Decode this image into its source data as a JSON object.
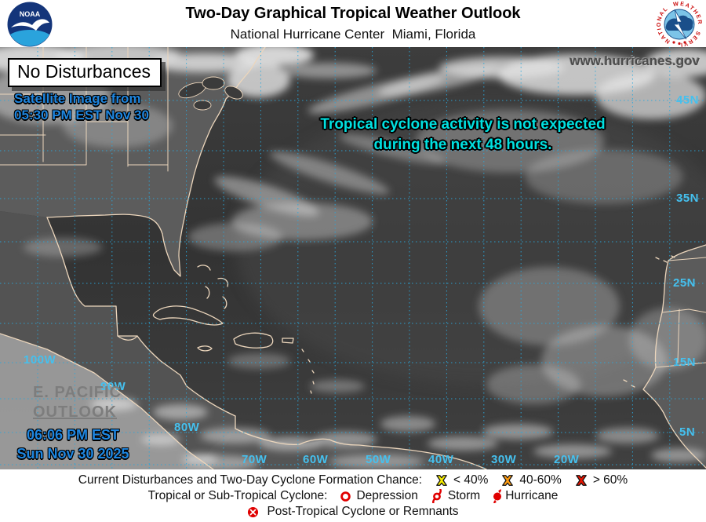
{
  "header": {
    "title": "Two-Day Graphical Tropical Weather Outlook",
    "subtitle": "National Hurricane Center  Miami, Florida",
    "noaa_logo_text": "NOAA"
  },
  "map": {
    "status_box": "No Disturbances",
    "satellite_line1": "Satellite Image from",
    "satellite_line2": "05:30 PM EST Nov 30",
    "website": "www.hurricanes.gov",
    "message_line1": "Tropical cyclone activity is not expected",
    "message_line2": "during the next 48 hours.",
    "epac_line1": "E. PACIFIC",
    "epac_line2": "OUTLOOK",
    "issued_time": "06:06 PM EST",
    "issued_date": "Sun Nov 30 2025",
    "lat_labels": [
      "45N",
      "35N",
      "25N",
      "15N",
      "5N"
    ],
    "lon_labels": [
      "100W",
      "90W",
      "80W",
      "70W",
      "60W",
      "50W",
      "40W",
      "30W",
      "20W"
    ],
    "label_color": "#45c0ee",
    "grid_color": "#2aa8dc",
    "message_color": "#00e0e0",
    "timestamp_color": "#1e86e0"
  },
  "legend": {
    "chance_title": "Current Disturbances and Two-Day Cyclone Formation Chance:",
    "chance_items": [
      {
        "label": "< 40%",
        "color": "#f6ec00"
      },
      {
        "label": "40-60%",
        "color": "#ff9c12"
      },
      {
        "label": "> 60%",
        "color": "#e81400"
      }
    ],
    "cyclone_title": "Tropical or Sub-Tropical Cyclone:",
    "cyclone_items": [
      {
        "label": "Depression"
      },
      {
        "label": "Storm"
      },
      {
        "label": "Hurricane"
      }
    ],
    "post_tropical_label": "Post-Tropical Cyclone or Remnants",
    "icon_color": "#e00000"
  }
}
